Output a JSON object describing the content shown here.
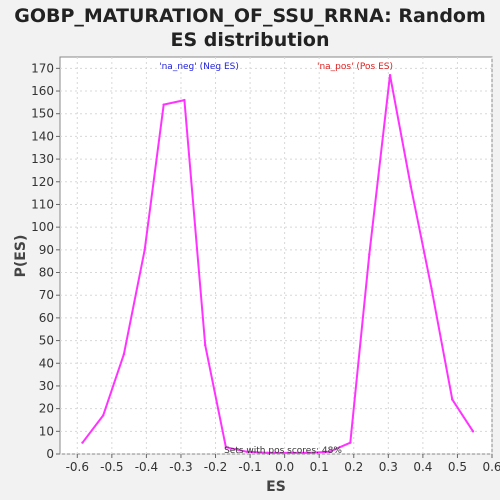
{
  "chart_data": {
    "type": "line",
    "title_line1": "GOBP_MATURATION_OF_SSU_RRNA: Random",
    "title_line2": "ES distribution",
    "xlabel": "ES",
    "ylabel": "P(ES)",
    "xlim": [
      -0.65,
      0.6
    ],
    "ylim": [
      0,
      175
    ],
    "xticks": [
      -0.6,
      -0.5,
      -0.4,
      -0.3,
      -0.2,
      -0.1,
      0.0,
      0.1,
      0.2,
      0.3,
      0.4,
      0.5,
      0.6
    ],
    "xtick_labels": [
      "-0.6",
      "-0.5",
      "-0.4",
      "-0.3",
      "-0.2",
      "-0.1",
      "0.0",
      "0.1",
      "0.2",
      "0.3",
      "0.4",
      "0.5",
      "0.6"
    ],
    "yticks": [
      0,
      10,
      20,
      30,
      40,
      50,
      60,
      70,
      80,
      90,
      100,
      110,
      120,
      130,
      140,
      150,
      160,
      170
    ],
    "grid": true,
    "line_color": "#ff33ff",
    "series": [
      {
        "x": [
          -0.585,
          -0.525,
          -0.465,
          -0.405,
          -0.35,
          -0.29,
          -0.23,
          -0.17,
          -0.11,
          -0.05,
          0.01,
          0.07,
          0.13,
          0.19,
          0.245,
          0.305,
          0.365,
          0.425,
          0.485,
          0.545
        ],
        "y": [
          5,
          17,
          44,
          90,
          154,
          156,
          48,
          3,
          1,
          0.5,
          0.5,
          0.5,
          1,
          5,
          88,
          167,
          118,
          73,
          24,
          10
        ]
      }
    ],
    "annotations": {
      "neg_label": "'na_neg' (Neg ES)",
      "neg_color": "#2222dd",
      "pos_label": "'na_pos' (Pos ES)",
      "pos_color": "#dd2222",
      "pos_scores": "Sets with pos scores: 48%"
    }
  }
}
